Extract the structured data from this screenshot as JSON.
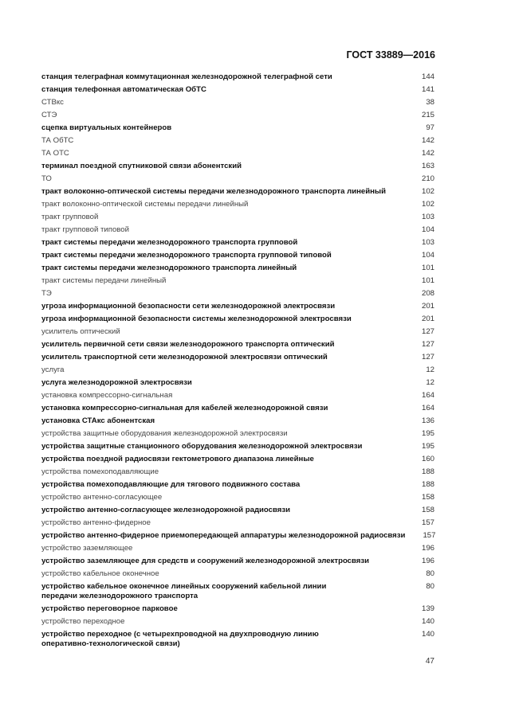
{
  "header": {
    "standard": "ГОСТ 33889—2016"
  },
  "entries": [
    {
      "term": "станция телеграфная коммутационная железнодорожной телеграфной сети",
      "page": "144",
      "bold": true
    },
    {
      "term": "станция телефонная автоматическая ОбТС",
      "page": "141",
      "bold": true
    },
    {
      "term": "СТВкс",
      "page": "38",
      "bold": false
    },
    {
      "term": "СТЭ",
      "page": "215",
      "bold": false
    },
    {
      "term": "сцепка виртуальных контейнеров",
      "page": "97",
      "bold": true
    },
    {
      "term": "ТА ОбТС",
      "page": "142",
      "bold": false
    },
    {
      "term": "ТА ОТС",
      "page": "142",
      "bold": false
    },
    {
      "term": "терминал поездной спутниковой связи абонентский",
      "page": "163",
      "bold": true
    },
    {
      "term": "ТО",
      "page": "210",
      "bold": false
    },
    {
      "term": "тракт волоконно-оптической системы передачи железнодорожного транспорта линейный",
      "page": "102",
      "bold": true
    },
    {
      "term": "тракт волоконно-оптической системы передачи линейный",
      "page": "102",
      "bold": false
    },
    {
      "term": "тракт групповой",
      "page": "103",
      "bold": false
    },
    {
      "term": "тракт групповой типовой",
      "page": "104",
      "bold": false
    },
    {
      "term": "тракт системы передачи железнодорожного транспорта групповой",
      "page": "103",
      "bold": true
    },
    {
      "term": "тракт системы передачи железнодорожного транспорта групповой типовой",
      "page": "104",
      "bold": true
    },
    {
      "term": "тракт системы передачи железнодорожного транспорта линейный",
      "page": "101",
      "bold": true
    },
    {
      "term": "тракт системы передачи линейный",
      "page": "101",
      "bold": false
    },
    {
      "term": "ТЭ",
      "page": "208",
      "bold": false
    },
    {
      "term": "угроза информационной безопасности сети железнодорожной электросвязи",
      "page": "201",
      "bold": true
    },
    {
      "term": "угроза информационной безопасности системы железнодорожной электросвязи",
      "page": "201",
      "bold": true
    },
    {
      "term": "усилитель оптический",
      "page": "127",
      "bold": false
    },
    {
      "term": "усилитель первичной сети связи железнодорожного транспорта оптический",
      "page": "127",
      "bold": true
    },
    {
      "term": "усилитель транспортной сети железнодорожной электросвязи оптический",
      "page": "127",
      "bold": true
    },
    {
      "term": "услуга",
      "page": "12",
      "bold": false
    },
    {
      "term": "услуга железнодорожной электросвязи",
      "page": "12",
      "bold": true
    },
    {
      "term": "установка компрессорно-сигнальная",
      "page": "164",
      "bold": false
    },
    {
      "term": "установка компрессорно-сигнальная для кабелей железнодорожной связи",
      "page": "164",
      "bold": true
    },
    {
      "term": "установка СТАкс абонентская",
      "page": "136",
      "bold": true
    },
    {
      "term": "устройства защитные оборудования железнодорожной электросвязи",
      "page": "195",
      "bold": false
    },
    {
      "term": "устройства защитные станционного оборудования железнодорожной электросвязи",
      "page": "195",
      "bold": true
    },
    {
      "term": "устройства поездной радиосвязи гектометрового диапазона линейные",
      "page": "160",
      "bold": true
    },
    {
      "term": "устройства помехоподавляющие",
      "page": "188",
      "bold": false
    },
    {
      "term": "устройства помехоподавляющие для тягового подвижного состава",
      "page": "188",
      "bold": true
    },
    {
      "term": "устройство антенно-согласующее",
      "page": "158",
      "bold": false
    },
    {
      "term": "устройство антенно-согласующее железнодорожной радиосвязи",
      "page": "158",
      "bold": true
    },
    {
      "term": "устройство антенно-фидерное",
      "page": "157",
      "bold": false
    },
    {
      "term": "устройство антенно-фидерное приемопередающей аппаратуры железнодорожной радиосвязи",
      "page": "157",
      "bold": true
    },
    {
      "term": "устройство заземляющее",
      "page": "196",
      "bold": false
    },
    {
      "term": "устройство заземляющее для средств и сооружений железнодорожной электросвязи",
      "page": "196",
      "bold": true
    },
    {
      "term": "устройство кабельное оконечное",
      "page": "80",
      "bold": false
    },
    {
      "term": "устройство кабельное оконечное линейных сооружений кабельной линии передачи железнодорожного транспорта",
      "page": "80",
      "bold": true
    },
    {
      "term": "устройство переговорное парковое",
      "page": "139",
      "bold": true
    },
    {
      "term": "устройство переходное",
      "page": "140",
      "bold": false
    },
    {
      "term": "устройство переходное (с четырехпроводной на двухпроводную линию оперативно-технологической связи)",
      "page": "140",
      "bold": true
    }
  ],
  "footer": {
    "page_number": "47"
  }
}
